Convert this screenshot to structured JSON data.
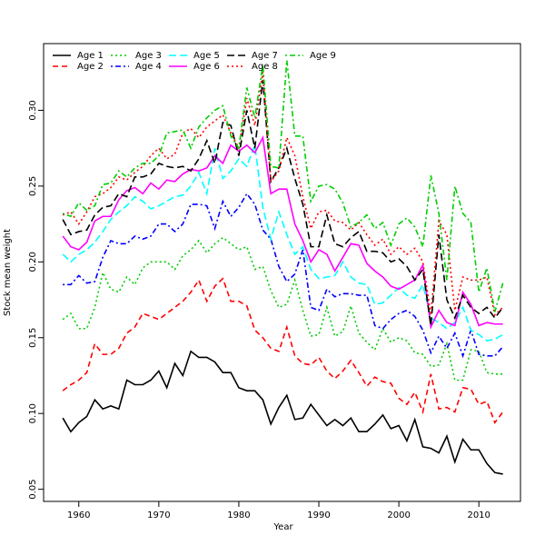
{
  "chart_data": {
    "type": "line",
    "xlabel": "Year",
    "ylabel": "Stock mean weight",
    "x": [
      1958,
      1959,
      1960,
      1961,
      1962,
      1963,
      1964,
      1965,
      1966,
      1967,
      1968,
      1969,
      1970,
      1971,
      1972,
      1973,
      1974,
      1975,
      1976,
      1977,
      1978,
      1979,
      1980,
      1981,
      1982,
      1983,
      1984,
      1985,
      1986,
      1987,
      1988,
      1989,
      1990,
      1991,
      1992,
      1993,
      1994,
      1995,
      1996,
      1997,
      1998,
      1999,
      2000,
      2001,
      2002,
      2003,
      2004,
      2005,
      2006,
      2007,
      2008,
      2009,
      2010,
      2011,
      2012,
      2013
    ],
    "xlim": [
      1955.6,
      2015.2
    ],
    "xticks": [
      1960,
      1970,
      1980,
      1990,
      2000,
      2010
    ],
    "ylim": [
      0.042,
      0.344
    ],
    "yticks": [
      0.05,
      {
        "value": 0.1,
        "label": "0.10"
      },
      0.15,
      {
        "value": 0.2,
        "label": "0.20"
      },
      0.25,
      {
        "value": 0.3,
        "label": "0.30"
      }
    ],
    "grid": false,
    "legend": "topleft",
    "series": [
      {
        "name": "Age 1",
        "color": "#000000",
        "dash": "solid",
        "values": [
          0.097,
          0.088,
          0.094,
          0.098,
          0.109,
          0.103,
          0.105,
          0.103,
          0.122,
          0.119,
          0.119,
          0.122,
          0.128,
          0.117,
          0.133,
          0.125,
          0.141,
          0.137,
          0.137,
          0.134,
          0.127,
          0.127,
          0.117,
          0.115,
          0.115,
          0.109,
          0.093,
          0.104,
          0.112,
          0.096,
          0.097,
          0.106,
          0.099,
          0.092,
          0.096,
          0.092,
          0.097,
          0.088,
          0.088,
          0.093,
          0.099,
          0.09,
          0.092,
          0.082,
          0.096,
          0.078,
          0.077,
          0.074,
          0.085,
          0.068,
          0.083,
          0.076,
          0.076,
          0.067,
          0.061,
          0.06
        ]
      },
      {
        "name": "Age 2",
        "color": "#ff0000",
        "dash": "dashed",
        "values": [
          0.115,
          0.119,
          0.122,
          0.127,
          0.146,
          0.139,
          0.139,
          0.143,
          0.153,
          0.157,
          0.166,
          0.164,
          0.162,
          0.166,
          0.17,
          0.174,
          0.18,
          0.188,
          0.174,
          0.184,
          0.189,
          0.174,
          0.174,
          0.171,
          0.155,
          0.15,
          0.143,
          0.141,
          0.157,
          0.138,
          0.133,
          0.132,
          0.137,
          0.128,
          0.123,
          0.128,
          0.135,
          0.127,
          0.118,
          0.124,
          0.121,
          0.12,
          0.11,
          0.106,
          0.114,
          0.101,
          0.126,
          0.103,
          0.104,
          0.101,
          0.117,
          0.116,
          0.106,
          0.108,
          0.094,
          0.101
        ]
      },
      {
        "name": "Age 3",
        "color": "#00cd00",
        "dash": "dotted",
        "values": [
          0.162,
          0.166,
          0.156,
          0.156,
          0.17,
          0.193,
          0.182,
          0.18,
          0.19,
          0.185,
          0.196,
          0.2,
          0.2,
          0.2,
          0.195,
          0.204,
          0.208,
          0.214,
          0.206,
          0.212,
          0.216,
          0.212,
          0.208,
          0.21,
          0.195,
          0.197,
          0.181,
          0.17,
          0.172,
          0.188,
          0.168,
          0.151,
          0.152,
          0.17,
          0.151,
          0.154,
          0.171,
          0.153,
          0.147,
          0.142,
          0.156,
          0.147,
          0.15,
          0.148,
          0.14,
          0.139,
          0.131,
          0.132,
          0.146,
          0.122,
          0.122,
          0.142,
          0.141,
          0.127,
          0.126,
          0.126
        ]
      },
      {
        "name": "Age 4",
        "color": "#0000ff",
        "dash": "dotdash",
        "values": [
          0.185,
          0.185,
          0.191,
          0.186,
          0.187,
          0.203,
          0.214,
          0.212,
          0.212,
          0.217,
          0.215,
          0.217,
          0.225,
          0.225,
          0.22,
          0.225,
          0.238,
          0.238,
          0.237,
          0.222,
          0.24,
          0.23,
          0.236,
          0.245,
          0.238,
          0.221,
          0.215,
          0.197,
          0.187,
          0.192,
          0.208,
          0.17,
          0.168,
          0.182,
          0.177,
          0.179,
          0.179,
          0.178,
          0.178,
          0.158,
          0.156,
          0.162,
          0.166,
          0.168,
          0.164,
          0.155,
          0.14,
          0.151,
          0.143,
          0.153,
          0.138,
          0.155,
          0.139,
          0.138,
          0.138,
          0.144
        ]
      },
      {
        "name": "Age 5",
        "color": "#00ffff",
        "dash": "longdash",
        "values": [
          0.205,
          0.2,
          0.205,
          0.208,
          0.213,
          0.22,
          0.228,
          0.233,
          0.237,
          0.243,
          0.24,
          0.235,
          0.237,
          0.24,
          0.243,
          0.244,
          0.25,
          0.259,
          0.245,
          0.275,
          0.255,
          0.26,
          0.268,
          0.263,
          0.277,
          0.236,
          0.215,
          0.233,
          0.218,
          0.205,
          0.21,
          0.195,
          0.189,
          0.19,
          0.191,
          0.2,
          0.19,
          0.186,
          0.185,
          0.172,
          0.173,
          0.178,
          0.183,
          0.178,
          0.176,
          0.185,
          0.163,
          0.16,
          0.156,
          0.16,
          0.17,
          0.155,
          0.152,
          0.148,
          0.149,
          0.152
        ]
      },
      {
        "name": "Age 6",
        "color": "#ff00ff",
        "dash": "solid",
        "values": [
          0.217,
          0.21,
          0.208,
          0.213,
          0.227,
          0.23,
          0.23,
          0.241,
          0.247,
          0.249,
          0.245,
          0.252,
          0.248,
          0.254,
          0.253,
          0.258,
          0.261,
          0.26,
          0.262,
          0.27,
          0.265,
          0.277,
          0.273,
          0.277,
          0.272,
          0.282,
          0.245,
          0.248,
          0.248,
          0.225,
          0.214,
          0.2,
          0.208,
          0.205,
          0.194,
          0.203,
          0.212,
          0.211,
          0.199,
          0.194,
          0.19,
          0.184,
          0.182,
          0.185,
          0.188,
          0.198,
          0.157,
          0.168,
          0.16,
          0.158,
          0.18,
          0.172,
          0.158,
          0.16,
          0.159,
          0.159
        ]
      },
      {
        "name": "Age 7",
        "color": "#000000",
        "dash": "longdash",
        "values": [
          0.228,
          0.218,
          0.22,
          0.221,
          0.231,
          0.236,
          0.237,
          0.245,
          0.243,
          0.256,
          0.256,
          0.258,
          0.265,
          0.263,
          0.262,
          0.263,
          0.26,
          0.268,
          0.28,
          0.265,
          0.292,
          0.29,
          0.27,
          0.3,
          0.275,
          0.32,
          0.253,
          0.262,
          0.275,
          0.255,
          0.238,
          0.21,
          0.21,
          0.231,
          0.212,
          0.21,
          0.216,
          0.22,
          0.207,
          0.207,
          0.206,
          0.2,
          0.202,
          0.197,
          0.188,
          0.195,
          0.158,
          0.218,
          0.175,
          0.163,
          0.178,
          0.17,
          0.166,
          0.17,
          0.163,
          0.17
        ]
      },
      {
        "name": "Age 8",
        "color": "#ff0000",
        "dash": "dotted",
        "values": [
          0.231,
          0.233,
          0.225,
          0.233,
          0.243,
          0.245,
          0.249,
          0.256,
          0.254,
          0.259,
          0.263,
          0.27,
          0.275,
          0.268,
          0.271,
          0.285,
          0.288,
          0.282,
          0.289,
          0.293,
          0.297,
          0.285,
          0.275,
          0.308,
          0.29,
          0.325,
          0.253,
          0.26,
          0.282,
          0.27,
          0.243,
          0.222,
          0.233,
          0.234,
          0.227,
          0.226,
          0.221,
          0.226,
          0.218,
          0.211,
          0.215,
          0.205,
          0.21,
          0.205,
          0.209,
          0.2,
          0.165,
          0.227,
          0.218,
          0.168,
          0.19,
          0.188,
          0.188,
          0.19,
          0.165,
          0.17
        ]
      },
      {
        "name": "Age 9",
        "color": "#00cd00",
        "dash": "dotdash",
        "values": [
          0.232,
          0.23,
          0.239,
          0.234,
          0.237,
          0.251,
          0.252,
          0.26,
          0.256,
          0.262,
          0.265,
          0.265,
          0.27,
          0.285,
          0.286,
          0.287,
          0.275,
          0.289,
          0.295,
          0.3,
          0.303,
          0.283,
          0.275,
          0.315,
          0.295,
          0.33,
          0.263,
          0.262,
          0.333,
          0.283,
          0.283,
          0.24,
          0.25,
          0.251,
          0.248,
          0.239,
          0.223,
          0.226,
          0.231,
          0.222,
          0.226,
          0.211,
          0.225,
          0.229,
          0.223,
          0.21,
          0.257,
          0.232,
          0.188,
          0.25,
          0.232,
          0.226,
          0.18,
          0.196,
          0.167,
          0.186
        ]
      }
    ]
  }
}
